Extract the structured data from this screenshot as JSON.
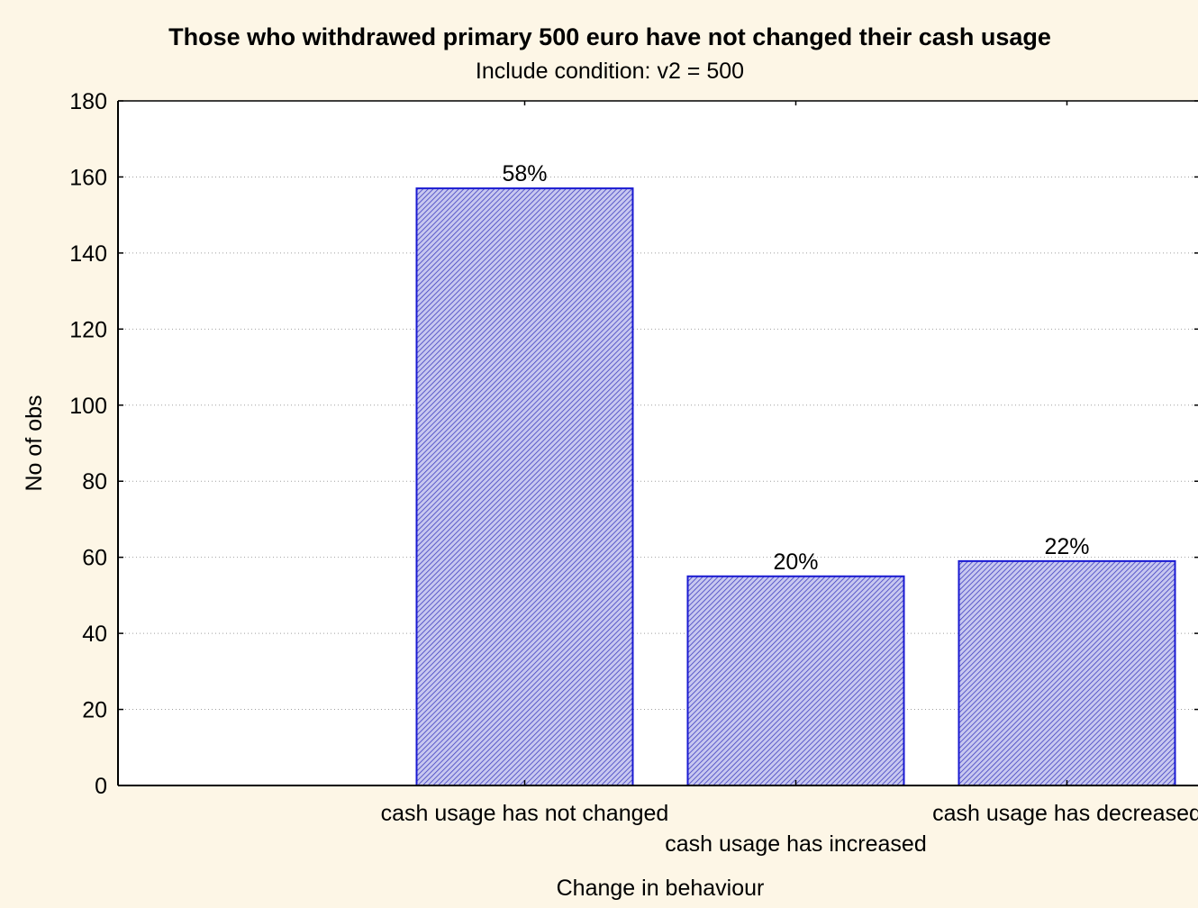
{
  "colors": {
    "background": "#fdf6e6",
    "plot_background": "#ffffff",
    "bar_fill": "#c8c8f0",
    "bar_hatch": "#4040c0",
    "bar_border": "#1a1ad2",
    "gridline": "#a0a0a0",
    "axis": "#000000"
  },
  "chart_data": {
    "type": "bar",
    "title": "Those who withdrawed primary 500 euro have not changed their cash usage",
    "subtitle": "Include condition: v2 = 500",
    "xlabel": "Change in behaviour",
    "ylabel": "No of obs",
    "categories": [
      "cash usage has not changed",
      "cash usage has increased",
      "cash usage has decreased"
    ],
    "values": [
      157,
      55,
      59
    ],
    "data_labels": [
      "58%",
      "20%",
      "22%"
    ],
    "ylim": [
      0,
      180
    ],
    "yticks": [
      0,
      20,
      40,
      60,
      80,
      100,
      120,
      140,
      160,
      180
    ],
    "grid": true,
    "legend": "none",
    "bar_style": "hatched"
  }
}
